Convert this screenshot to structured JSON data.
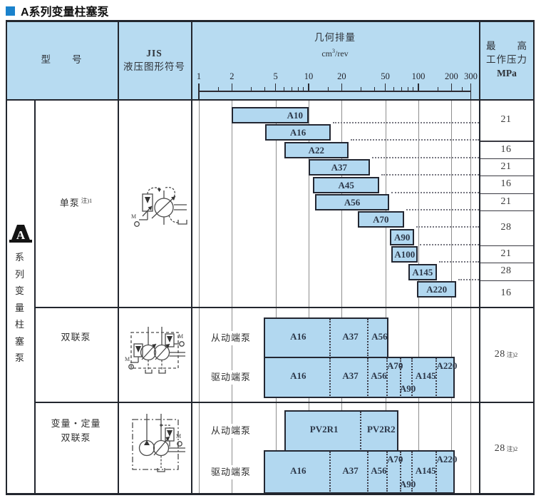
{
  "title": "A系列变量柱塞泵",
  "table_header": {
    "model": "型　　号",
    "jis": [
      "JIS",
      "液压图形符号"
    ],
    "displacement_title": "几何排量",
    "displacement_unit": {
      "base": "cm",
      "sup": "3",
      "rest": "/rev"
    },
    "pressure": [
      "最　　高",
      "工作压力",
      "MPa"
    ]
  },
  "side_strip": {
    "logo": "A",
    "label": "系列变量柱塞泵"
  },
  "symbols": {
    "motor_label": "M"
  },
  "colors": {
    "accent_blue": "#1a82cc",
    "header_bg": "#b7dbf1",
    "bar_fill": "#b2d8f0",
    "bar_border": "#232732",
    "grid_line": "#8e8e8e",
    "frame_line": "#22262e"
  },
  "chart_data": {
    "type": "range-bar",
    "x_scale": "log10",
    "x_min": 1,
    "x_max": 300,
    "x_title": "几何排量",
    "x_unit": "cm3/rev",
    "x_ticks": [
      1,
      2,
      5,
      10,
      20,
      50,
      100,
      200,
      300
    ],
    "x_minor_ticks": [
      1.5,
      3,
      4,
      6,
      7,
      8,
      9,
      15,
      30,
      40,
      60,
      70,
      80,
      90,
      150,
      250
    ],
    "sections": [
      {
        "name": "单泵",
        "note": "注)1",
        "bars": [
          {
            "label": "A10",
            "from": 2,
            "to": 10,
            "label_align": "right"
          },
          {
            "label": "A16",
            "from": 4,
            "to": 16
          },
          {
            "label": "A22",
            "from": 6,
            "to": 23
          },
          {
            "label": "A37",
            "from": 10,
            "to": 36
          },
          {
            "label": "A45",
            "from": 11,
            "to": 44
          },
          {
            "label": "A56",
            "from": 11.5,
            "to": 54
          },
          {
            "label": "A70",
            "from": 28,
            "to": 74
          },
          {
            "label": "A90",
            "from": 55,
            "to": 92
          },
          {
            "label": "A100",
            "from": 57,
            "to": 99
          },
          {
            "label": "A145",
            "from": 81,
            "to": 147
          },
          {
            "label": "A220",
            "from": 97,
            "to": 222
          }
        ],
        "pressure_groups": [
          {
            "value": "21",
            "rows": 2
          },
          {
            "value": "16",
            "rows": 1
          },
          {
            "value": "21",
            "rows": 1
          },
          {
            "value": "16",
            "rows": 1
          },
          {
            "value": "21",
            "rows": 1
          },
          {
            "value": "28",
            "rows": 2
          },
          {
            "value": "21",
            "rows": 1
          },
          {
            "value": "28",
            "rows": 1
          },
          {
            "value": "16",
            "rows": 1
          }
        ]
      },
      {
        "name": "双联泵",
        "pressure": {
          "value": "28",
          "note": "注)2"
        },
        "rows": [
          {
            "label": "从动端泵",
            "from": 3.9,
            "segments": [
              {
                "label": "A16",
                "to": 15.6
              },
              {
                "label": "A37",
                "to": 34.8
              },
              {
                "label": "A56",
                "to": 53
              }
            ]
          },
          {
            "label": "驱动端泵",
            "from": 3.9,
            "segments": [
              {
                "label": "A16",
                "to": 15.6,
                "pos": "mid"
              },
              {
                "label": "A37",
                "to": 34.8,
                "pos": "mid"
              },
              {
                "label": "A56",
                "to": 51.5,
                "pos": "mid"
              },
              {
                "label": "A70",
                "to": 68.5,
                "pos": "top"
              },
              {
                "label": "A90",
                "to": 88,
                "pos": "bottom"
              },
              {
                "label": "A145",
                "to": 145,
                "pos": "mid"
              },
              {
                "label": "A220",
                "to": 215,
                "pos": "top"
              }
            ]
          }
        ]
      },
      {
        "name": "变量・定量双联泵",
        "name_lines": [
          "变量・定量",
          "双联泵"
        ],
        "pressure": {
          "value": "28",
          "note": "注)2"
        },
        "rows": [
          {
            "label": "从动端泵",
            "from": 6,
            "segments": [
              {
                "label": "PV2R1",
                "to": 30
              },
              {
                "label": "PV2R2",
                "to": 66
              }
            ]
          },
          {
            "label": "驱动端泵",
            "from": 3.9,
            "segments": [
              {
                "label": "A16",
                "to": 15.6,
                "pos": "mid"
              },
              {
                "label": "A37",
                "to": 34.8,
                "pos": "mid"
              },
              {
                "label": "A56",
                "to": 51.5,
                "pos": "mid"
              },
              {
                "label": "A70",
                "to": 68.5,
                "pos": "top"
              },
              {
                "label": "A90",
                "to": 88,
                "pos": "bottom"
              },
              {
                "label": "A145",
                "to": 145,
                "pos": "mid"
              },
              {
                "label": "A220",
                "to": 215,
                "pos": "top"
              }
            ]
          }
        ]
      }
    ]
  }
}
